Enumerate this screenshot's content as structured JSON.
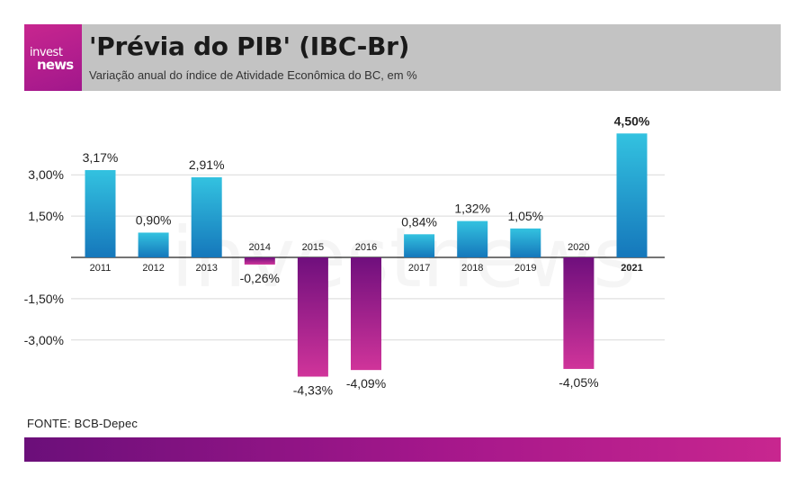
{
  "header": {
    "logo_text_top": "invest",
    "logo_text_bottom": "news",
    "title": "'Prévia do PIB' (IBC-Br)",
    "subtitle": "Variação anual do índice de Atividade Econômica do BC, em %"
  },
  "source": "FONTE: BCB-Depec",
  "watermark": "investnews",
  "colors": {
    "positive_top": "#33c2e0",
    "positive_bottom": "#1577bb",
    "negative_top": "#6f0f7d",
    "negative_bottom": "#d0349a",
    "header_bg": "#c3c3c3",
    "brand": "#c8268f"
  },
  "chart_data": {
    "type": "bar",
    "title": "'Prévia do PIB' (IBC-Br)",
    "subtitle": "Variação anual do índice de Atividade Econômica do BC, em %",
    "xlabel": "",
    "ylabel": "",
    "categories": [
      "2011",
      "2012",
      "2013",
      "2014",
      "2015",
      "2016",
      "2017",
      "2018",
      "2019",
      "2020",
      "2021"
    ],
    "values": [
      3.17,
      0.9,
      2.91,
      -0.26,
      -4.33,
      -4.09,
      0.84,
      1.32,
      1.05,
      -4.05,
      4.5
    ],
    "value_labels": [
      "3,17%",
      "0,90%",
      "2,91%",
      "-0,26%",
      "-4,33%",
      "-4,09%",
      "0,84%",
      "1,32%",
      "1,05%",
      "-4,05%",
      "4,50%"
    ],
    "highlight": "2021",
    "y_ticks": [
      3.0,
      1.5,
      -1.5,
      -3.0
    ],
    "y_tick_labels": [
      "3,00%",
      "1,50%",
      "-1,50%",
      "-3,00%"
    ],
    "ylim": [
      -5.0,
      5.0
    ],
    "grid": true,
    "legend": "none"
  }
}
